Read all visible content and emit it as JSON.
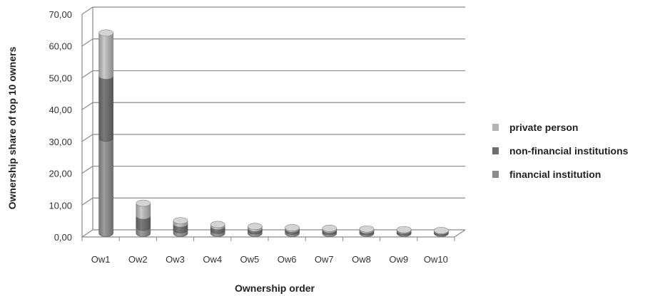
{
  "chart_data": {
    "type": "bar",
    "stacked": true,
    "style": "3d-cylinder",
    "xlabel": "Ownership order",
    "ylabel": "Ownership share of top 10 owners",
    "ylim": [
      0,
      70
    ],
    "yticks": [
      "0,00",
      "10,00",
      "20,00",
      "30,00",
      "40,00",
      "50,00",
      "60,00",
      "70,00"
    ],
    "categories": [
      "Ow1",
      "Ow2",
      "Ow3",
      "Ow4",
      "Ow5",
      "Ow6",
      "Ow7",
      "Ow8",
      "Ow9",
      "Ow10"
    ],
    "series": [
      {
        "name": "financial institution",
        "color": "#8c8c8c",
        "values": [
          30.0,
          2.0,
          1.2,
          1.0,
          0.8,
          0.7,
          0.6,
          0.5,
          0.4,
          0.3
        ]
      },
      {
        "name": "non-financial institutions",
        "color": "#6e6e6e",
        "values": [
          19.5,
          3.5,
          1.8,
          1.2,
          0.8,
          0.7,
          0.6,
          0.5,
          0.5,
          0.4
        ]
      },
      {
        "name": "private person",
        "color": "#b4b4b4",
        "values": [
          13.5,
          4.0,
          1.0,
          0.6,
          0.6,
          0.4,
          0.4,
          0.4,
          0.3,
          0.2
        ]
      }
    ],
    "legend_order": [
      "private person",
      "non-financial institutions",
      "financial institution"
    ],
    "legend_position": "right",
    "grid": true
  }
}
